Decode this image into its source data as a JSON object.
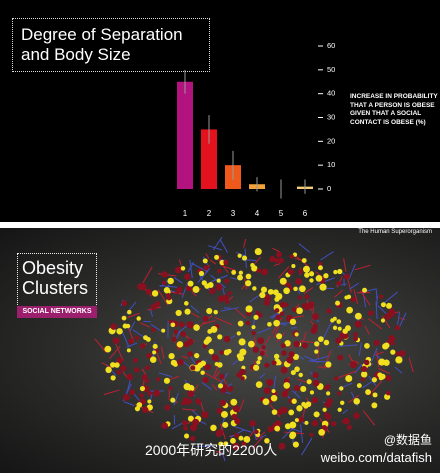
{
  "chart_data": {
    "type": "bar",
    "title": "Degree of Separation and Body Size",
    "y_label": "INCREASE IN PROBABILITY THAT A PERSON IS OBESE GIVEN THAT A SOCIAL CONTACT IS OBESE (%)",
    "categories": [
      "1",
      "2",
      "3",
      "4",
      "5",
      "6"
    ],
    "values": [
      45,
      25,
      10,
      2,
      0,
      1
    ],
    "errors": [
      5,
      6,
      6,
      3,
      4,
      3
    ],
    "colors": [
      "#b3137f",
      "#e3121c",
      "#ef5a1c",
      "#f2a238",
      "#f3c46c",
      "#f5cd78"
    ],
    "ylim": [
      0,
      60
    ],
    "yticks": [
      0,
      10,
      20,
      30,
      40,
      50,
      60
    ]
  },
  "network_panel": {
    "header": "The Human Superorganism",
    "title": "Obesity Clusters",
    "tag": "SOCIAL NETWORKS",
    "caption": "2000年研究的2200人",
    "watermark": "@数据鱼",
    "url": "weibo.com/datafish"
  }
}
